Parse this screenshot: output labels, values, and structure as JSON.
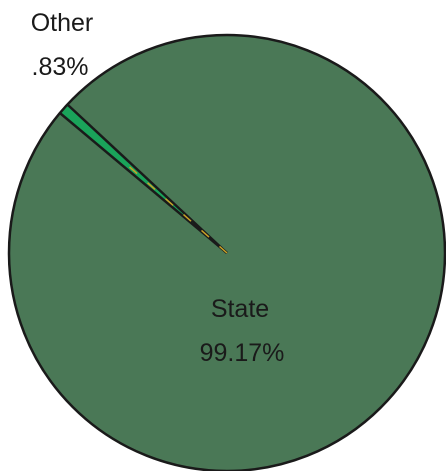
{
  "chart_data": {
    "type": "pie",
    "slices": [
      {
        "label": "State",
        "value": 99.17,
        "value_label": "99.17%",
        "color": "#4a7856"
      },
      {
        "label": "Other",
        "value": 0.83,
        "value_label": ".83%",
        "color": "#1aa35a"
      }
    ],
    "edge_color": "#1a1a1a",
    "divider_accent_color": "#c9a227"
  }
}
